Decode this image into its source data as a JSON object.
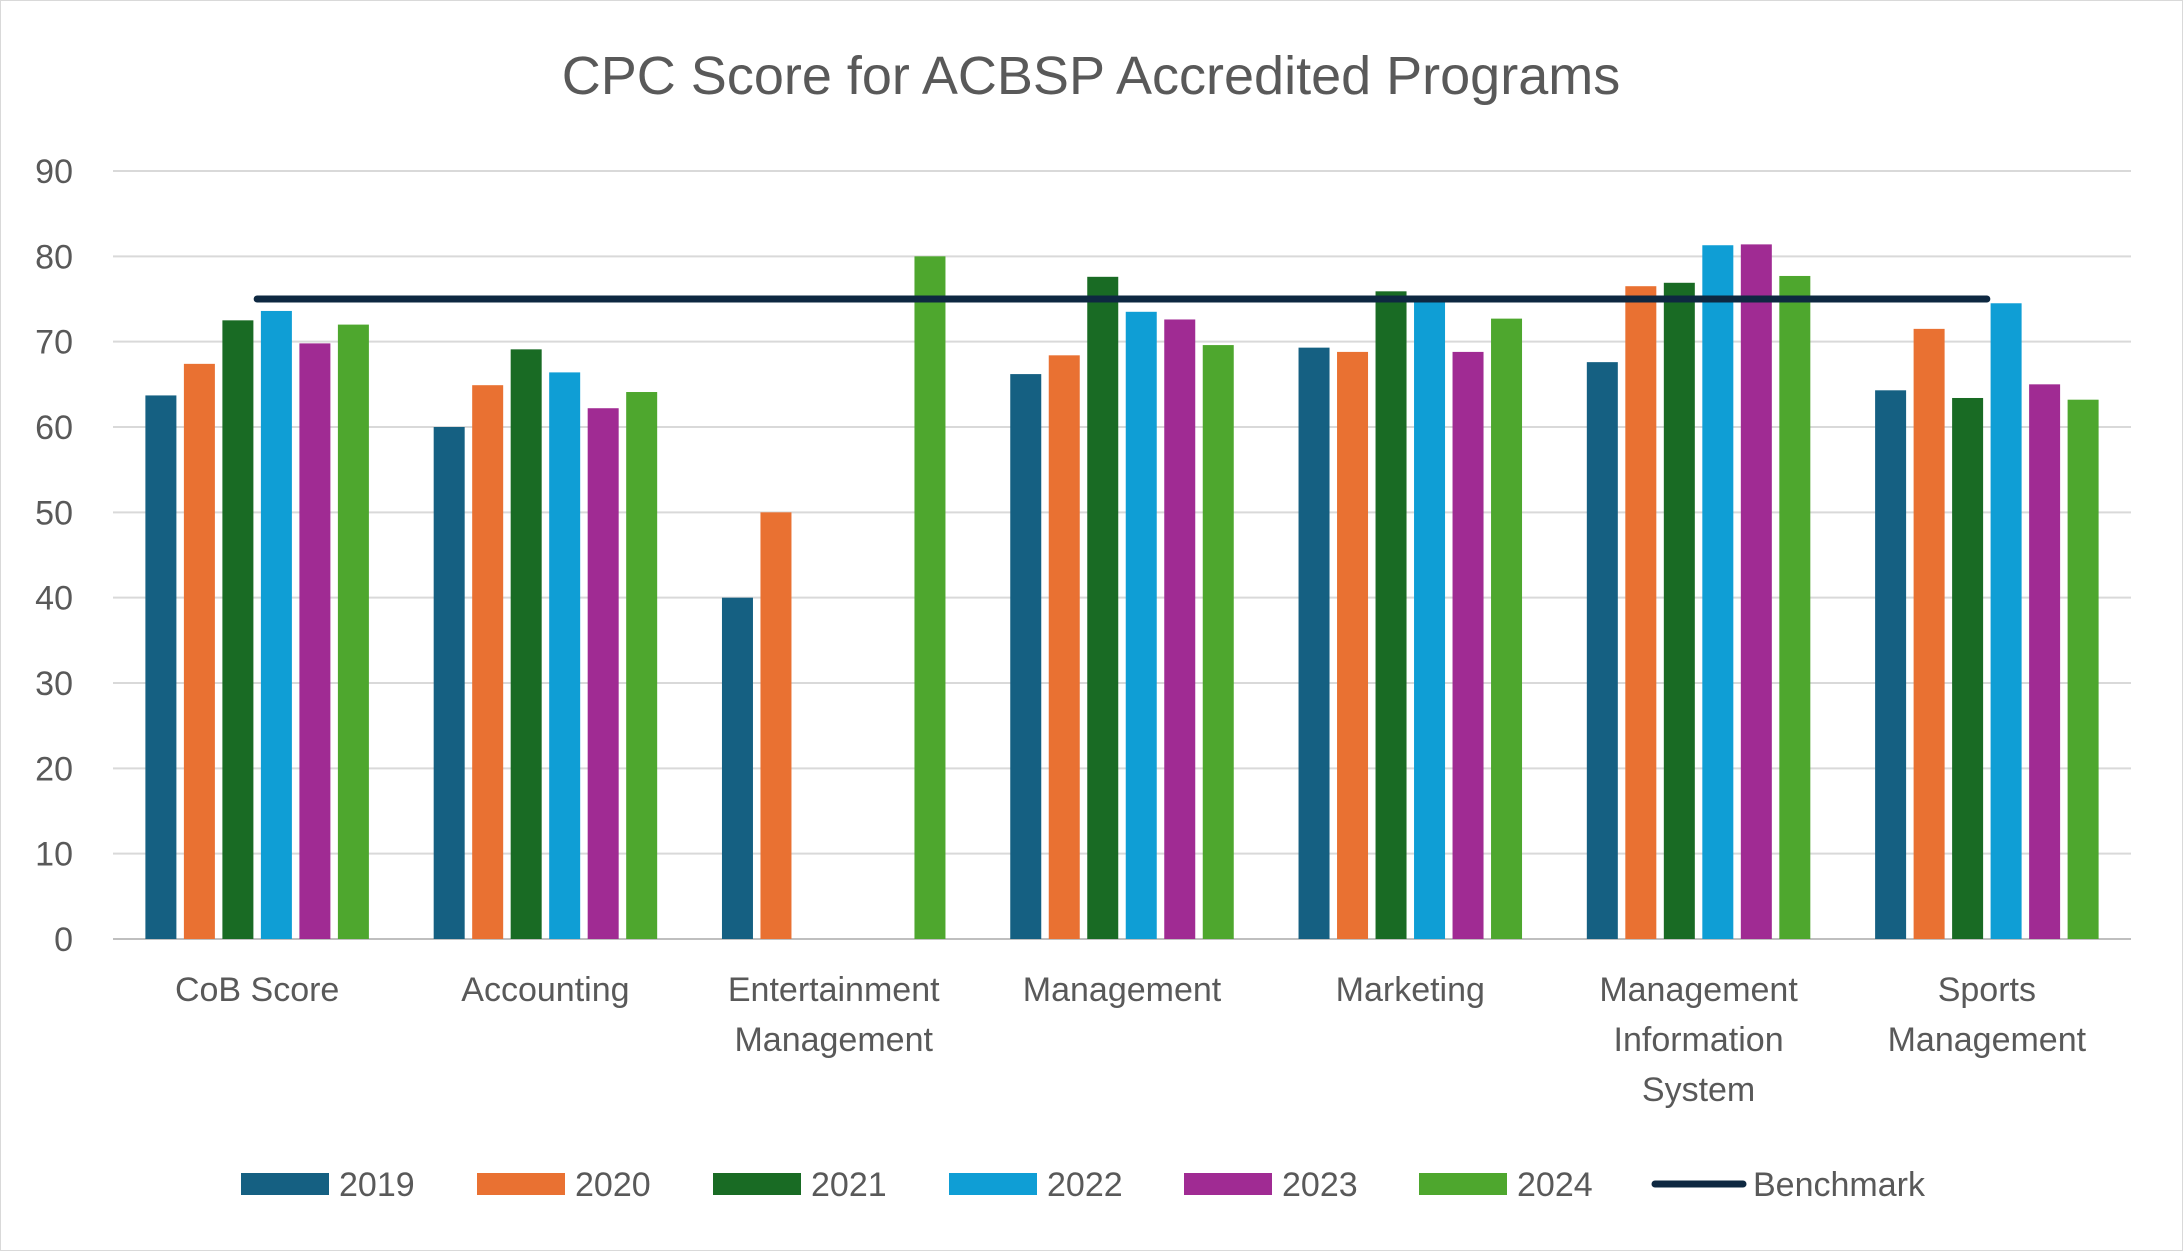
{
  "chart_data": {
    "type": "bar",
    "title": "CPC Score for ACBSP Accredited Programs",
    "categories": [
      [
        "CoB Score"
      ],
      [
        "Accounting"
      ],
      [
        "Entertainment",
        "Management"
      ],
      [
        "Management"
      ],
      [
        "Marketing"
      ],
      [
        "Management",
        "Information",
        "System"
      ],
      [
        "Sports",
        "Management"
      ]
    ],
    "ylim": [
      0,
      90
    ],
    "yticks": [
      "0",
      "10",
      "20",
      "30",
      "40",
      "50",
      "60",
      "70",
      "80",
      "90"
    ],
    "grid": true,
    "legend_position": "bottom",
    "series": [
      {
        "name": "2019",
        "color": "#156082",
        "values": [
          63.7,
          60,
          40,
          66.2,
          69.3,
          67.6,
          64.3
        ]
      },
      {
        "name": "2020",
        "color": "#E97132",
        "values": [
          67.4,
          64.9,
          50,
          68.4,
          68.8,
          76.5,
          71.5
        ]
      },
      {
        "name": "2021",
        "color": "#196B24",
        "values": [
          72.5,
          69.1,
          null,
          77.6,
          75.9,
          76.9,
          63.4
        ]
      },
      {
        "name": "2022",
        "color": "#0F9ED5",
        "values": [
          73.6,
          66.4,
          null,
          73.5,
          75.4,
          81.3,
          74.5
        ]
      },
      {
        "name": "2023",
        "color": "#A02B93",
        "values": [
          69.8,
          62.2,
          null,
          72.6,
          68.8,
          81.4,
          65
        ]
      },
      {
        "name": "2024",
        "color": "#4EA72E",
        "values": [
          72,
          64.1,
          80,
          69.6,
          72.7,
          77.7,
          63.2
        ]
      }
    ],
    "benchmark": {
      "name": "Benchmark",
      "color": "#0E2841",
      "value": 75
    }
  }
}
